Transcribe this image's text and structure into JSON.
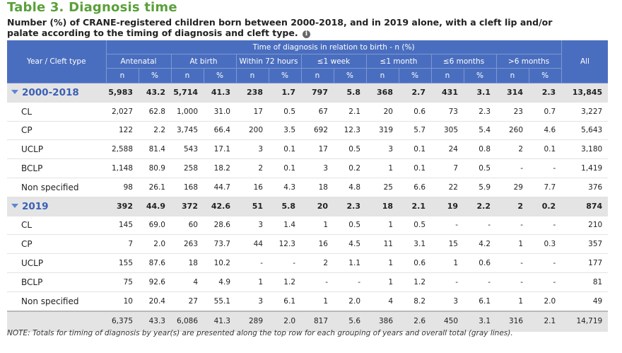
{
  "title": "Table 3. Diagnosis time",
  "subtitle": "Number (%) of CRANE-registered children born between 2000-2018, and in 2019 alone, with a cleft lip and/or palate according to the timing of diagnosis and cleft type.",
  "info_icon": "i",
  "header": {
    "row_label": "Year / Cleft type",
    "time_group": "Time of diagnosis in relation to birth - n (%)",
    "all": "All",
    "categories": [
      "Antenatal",
      "At birth",
      "Within 72 hours",
      "≤1 week",
      "≤1 month",
      "≤6 months",
      ">6 months"
    ],
    "n_label": "n",
    "pct_label": "%"
  },
  "rows": [
    {
      "label": "2000-2018",
      "type": "group",
      "cells": [
        "5,983",
        "43.2",
        "5,714",
        "41.3",
        "238",
        "1.7",
        "797",
        "5.8",
        "368",
        "2.7",
        "431",
        "3.1",
        "314",
        "2.3",
        "13,845"
      ]
    },
    {
      "label": "CL",
      "type": "item",
      "cells": [
        "2,027",
        "62.8",
        "1,000",
        "31.0",
        "17",
        "0.5",
        "67",
        "2.1",
        "20",
        "0.6",
        "73",
        "2.3",
        "23",
        "0.7",
        "3,227"
      ]
    },
    {
      "label": "CP",
      "type": "item",
      "cells": [
        "122",
        "2.2",
        "3,745",
        "66.4",
        "200",
        "3.5",
        "692",
        "12.3",
        "319",
        "5.7",
        "305",
        "5.4",
        "260",
        "4.6",
        "5,643"
      ]
    },
    {
      "label": "UCLP",
      "type": "item",
      "cells": [
        "2,588",
        "81.4",
        "543",
        "17.1",
        "3",
        "0.1",
        "17",
        "0.5",
        "3",
        "0.1",
        "24",
        "0.8",
        "2",
        "0.1",
        "3,180"
      ]
    },
    {
      "label": "BCLP",
      "type": "item",
      "cells": [
        "1,148",
        "80.9",
        "258",
        "18.2",
        "2",
        "0.1",
        "3",
        "0.2",
        "1",
        "0.1",
        "7",
        "0.5",
        "-",
        "-",
        "1,419"
      ]
    },
    {
      "label": "Non specified",
      "type": "item",
      "cells": [
        "98",
        "26.1",
        "168",
        "44.7",
        "16",
        "4.3",
        "18",
        "4.8",
        "25",
        "6.6",
        "22",
        "5.9",
        "29",
        "7.7",
        "376"
      ]
    },
    {
      "label": "2019",
      "type": "group",
      "cells": [
        "392",
        "44.9",
        "372",
        "42.6",
        "51",
        "5.8",
        "20",
        "2.3",
        "18",
        "2.1",
        "19",
        "2.2",
        "2",
        "0.2",
        "874"
      ]
    },
    {
      "label": "CL",
      "type": "item",
      "cells": [
        "145",
        "69.0",
        "60",
        "28.6",
        "3",
        "1.4",
        "1",
        "0.5",
        "1",
        "0.5",
        "-",
        "-",
        "-",
        "-",
        "210"
      ]
    },
    {
      "label": "CP",
      "type": "item",
      "cells": [
        "7",
        "2.0",
        "263",
        "73.7",
        "44",
        "12.3",
        "16",
        "4.5",
        "11",
        "3.1",
        "15",
        "4.2",
        "1",
        "0.3",
        "357"
      ]
    },
    {
      "label": "UCLP",
      "type": "item",
      "cells": [
        "155",
        "87.6",
        "18",
        "10.2",
        "-",
        "-",
        "2",
        "1.1",
        "1",
        "0.6",
        "1",
        "0.6",
        "-",
        "-",
        "177"
      ]
    },
    {
      "label": "BCLP",
      "type": "item",
      "cells": [
        "75",
        "92.6",
        "4",
        "4.9",
        "1",
        "1.2",
        "-",
        "-",
        "1",
        "1.2",
        "-",
        "-",
        "-",
        "-",
        "81"
      ]
    },
    {
      "label": "Non specified",
      "type": "item",
      "cells": [
        "10",
        "20.4",
        "27",
        "55.1",
        "3",
        "6.1",
        "1",
        "2.0",
        "4",
        "8.2",
        "3",
        "6.1",
        "1",
        "2.0",
        "49"
      ]
    }
  ],
  "total": {
    "label": "",
    "cells": [
      "6,375",
      "43.3",
      "6,086",
      "41.3",
      "289",
      "2.0",
      "817",
      "5.6",
      "386",
      "2.6",
      "450",
      "3.1",
      "316",
      "2.1",
      "14,719"
    ]
  },
  "note": "NOTE: Totals for timing of diagnosis by year(s) are presented along the top row for each grouping of years and overall total (gray lines).",
  "colors": {
    "title": "#5aa03a",
    "header": "#4a6ebf",
    "group_label": "#3b5fb5",
    "group_bg": "#e4e4e4"
  }
}
